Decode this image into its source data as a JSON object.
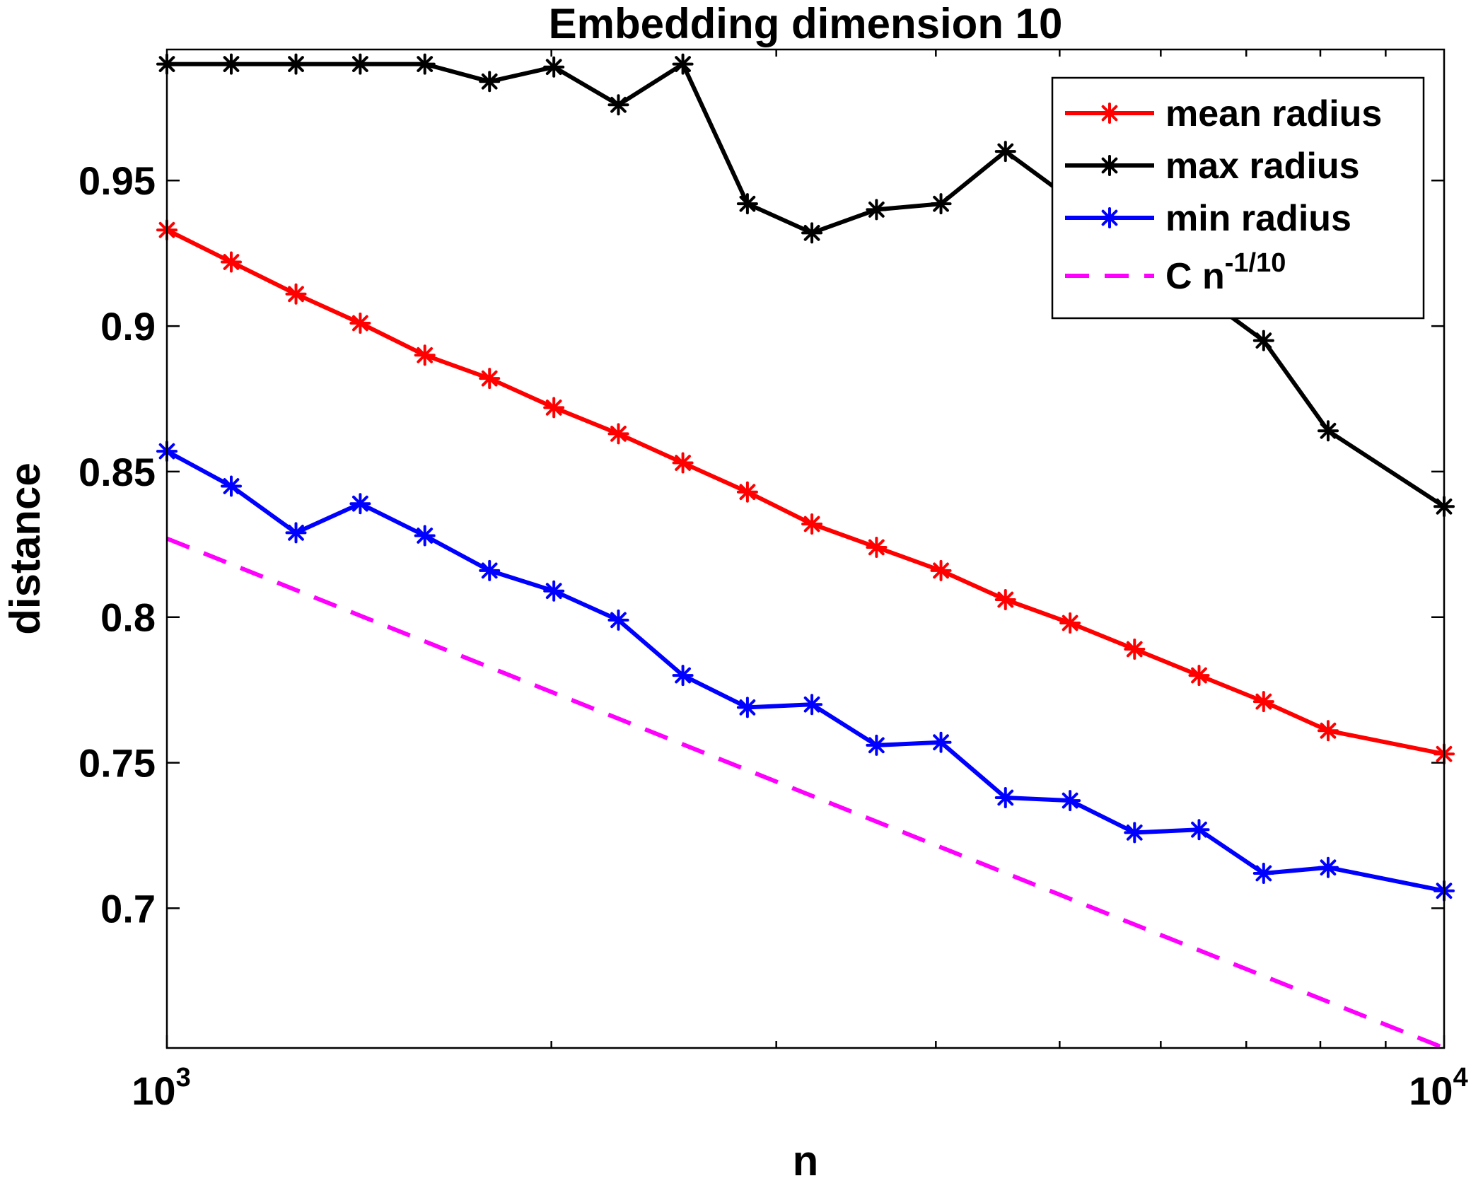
{
  "chart_data": {
    "type": "line",
    "title": "Embedding dimension 10",
    "xlabel": "n",
    "ylabel": "distance",
    "xscale": "log",
    "xlim": [
      1000,
      10000
    ],
    "ylim": [
      0.652,
      0.995
    ],
    "yticks": [
      0.7,
      0.75,
      0.8,
      0.85,
      0.9,
      0.95
    ],
    "ytick_labels": [
      "0.7",
      "0.75",
      "0.8",
      "0.85",
      "0.9",
      "0.95"
    ],
    "xticks_major": [
      1000,
      10000
    ],
    "xtick_bases": [
      "10",
      "10"
    ],
    "xtick_exponents": [
      "3",
      "4"
    ],
    "xticks_minor": [
      2000,
      3000,
      4000,
      5000,
      6000,
      7000,
      8000,
      9000
    ],
    "grid": false,
    "legend_position": "top-right",
    "x": [
      1000,
      1123,
      1262,
      1417,
      1592,
      1789,
      2009,
      2257,
      2535,
      2848,
      3199,
      3594,
      4037,
      4535,
      5095,
      5723,
      6429,
      7223,
      8113,
      9115,
      10000
    ],
    "series": [
      {
        "name": "mean radius",
        "color": "#ff0000",
        "marker": "asterisk",
        "line": "solid",
        "values": [
          0.933,
          0.922,
          0.911,
          0.901,
          0.89,
          0.882,
          0.872,
          0.863,
          0.853,
          0.843,
          0.832,
          0.824,
          0.816,
          0.806,
          0.798,
          0.789,
          0.78,
          0.771,
          0.761,
          null,
          0.753
        ]
      },
      {
        "name": "max radius",
        "color": "#000000",
        "marker": "asterisk",
        "line": "solid",
        "values": [
          0.99,
          0.99,
          0.99,
          0.99,
          0.99,
          0.984,
          0.989,
          0.976,
          0.99,
          0.942,
          0.932,
          0.94,
          0.942,
          0.96,
          null,
          null,
          null,
          0.895,
          0.864,
          null,
          0.838
        ]
      },
      {
        "name": "min radius",
        "color": "#0000ff",
        "marker": "asterisk",
        "line": "solid",
        "values": [
          0.857,
          0.845,
          0.829,
          0.839,
          0.828,
          0.816,
          0.809,
          0.799,
          0.78,
          0.769,
          0.77,
          0.756,
          0.757,
          0.738,
          0.737,
          0.726,
          0.727,
          0.712,
          0.714,
          null,
          0.706
        ]
      },
      {
        "name": "C n",
        "name_superscript": "-1/10",
        "color": "#ff00ff",
        "marker": "none",
        "line": "dashed",
        "values": [
          0.827,
          null,
          null,
          null,
          null,
          null,
          null,
          null,
          null,
          null,
          null,
          null,
          null,
          null,
          null,
          null,
          null,
          null,
          null,
          null,
          0.652
        ]
      }
    ]
  }
}
